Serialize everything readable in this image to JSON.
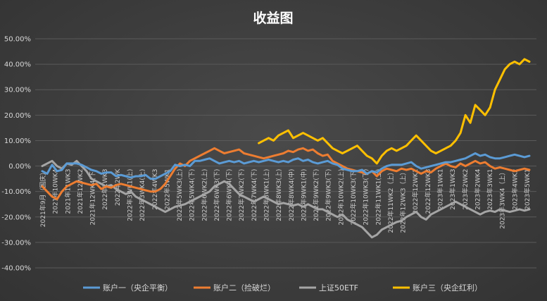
{
  "chart_data": {
    "type": "line",
    "title": "收益图",
    "xlabel": "",
    "ylabel": "",
    "ylim": [
      -0.4,
      0.5
    ],
    "yticks": [
      "50.00%",
      "40.00%",
      "30.00%",
      "20.00%",
      "10.00%",
      "0.00%",
      "-10.00%",
      "-20.00%",
      "-30.00%",
      "-40.00%"
    ],
    "grid": true,
    "legend": "bottom",
    "x_tick_labels": [
      "2021年9月（国庆）",
      "2021年10WK4",
      "2021年11WK3",
      "2021年12WK2",
      "2021年12WK4(下)",
      "2022年1WK3",
      "2022年2WK",
      "2022年3WK1(上)",
      "2022年3WK4(上)",
      "2022年4WK3",
      "2022年5WK1",
      "2022年5WK3(上)",
      "2022年5WK4(下)",
      "2022年6WK2(上)",
      "2022年6WK3(下)",
      "2022年6WK4(下)",
      "2022年7WK2(下)",
      "2022年7WK4(下)",
      "2022年8WK1(上)",
      "2022年8WK3(上)",
      "2022年8WK4(中)",
      "2022年9WK1(中)",
      "2022年9WK2(下)",
      "2022年9WK3(下)",
      "2022年10WK2(上)",
      "2022年10WK3(下)",
      "2022年10WK3(下)",
      "2022年11WK1(上)",
      "2022年11WK2（上）",
      "2022年12WK3（上）",
      "2022年12WK1",
      "2022年12WK3",
      "2023年1WK1",
      "2023年1WK3",
      "2023年2WK2",
      "2023年2WK4",
      "2023年3WK1",
      "2023年3WK4（上）",
      "2023年4WK2",
      "2023年5WK1"
    ],
    "series": [
      {
        "name": "账户一（央企平衡）",
        "color": "#5b9bd5",
        "values": [
          -0.02,
          -0.03,
          0.005,
          -0.02,
          -0.015,
          0.01,
          0.01,
          0.01,
          0.005,
          -0.005,
          -0.015,
          -0.02,
          -0.03,
          -0.025,
          -0.025,
          -0.04,
          -0.035,
          -0.04,
          -0.045,
          -0.04,
          -0.04,
          -0.035,
          -0.05,
          -0.05,
          -0.04,
          -0.03,
          -0.02,
          0.005,
          0.0,
          0.005,
          0.0,
          0.02,
          0.02,
          0.025,
          0.03,
          0.02,
          0.01,
          0.015,
          0.02,
          0.015,
          0.02,
          0.01,
          0.015,
          0.02,
          0.015,
          0.02,
          0.025,
          0.02,
          0.015,
          0.02,
          0.015,
          0.025,
          0.03,
          0.02,
          0.025,
          0.015,
          0.01,
          0.015,
          0.02,
          0.01,
          0.005,
          -0.01,
          -0.015,
          -0.02,
          -0.02,
          -0.015,
          -0.03,
          -0.02,
          -0.025,
          -0.01,
          0.0,
          0.005,
          0.005,
          0.005,
          0.01,
          0.015,
          0.0,
          -0.01,
          -0.005,
          0.0,
          0.005,
          0.01,
          0.015,
          0.015,
          0.02,
          0.025,
          0.03,
          0.04,
          0.05,
          0.04,
          0.045,
          0.035,
          0.03,
          0.03,
          0.035,
          0.04,
          0.045,
          0.04,
          0.035,
          0.04
        ]
      },
      {
        "name": "账户二（捡破烂）",
        "color": "#ed7d31",
        "values": [
          -0.08,
          -0.1,
          -0.12,
          -0.13,
          -0.1,
          -0.08,
          -0.07,
          -0.06,
          -0.065,
          -0.07,
          -0.075,
          -0.07,
          -0.09,
          -0.08,
          -0.085,
          -0.075,
          -0.07,
          -0.075,
          -0.08,
          -0.085,
          -0.09,
          -0.095,
          -0.1,
          -0.1,
          -0.09,
          -0.07,
          -0.04,
          -0.01,
          0.01,
          0.0,
          0.02,
          0.03,
          0.04,
          0.05,
          0.06,
          0.07,
          0.06,
          0.05,
          0.055,
          0.06,
          0.065,
          0.05,
          0.045,
          0.04,
          0.035,
          0.03,
          0.035,
          0.04,
          0.045,
          0.05,
          0.06,
          0.055,
          0.065,
          0.07,
          0.06,
          0.065,
          0.05,
          0.04,
          0.045,
          0.02,
          0.01,
          0.0,
          -0.01,
          -0.015,
          -0.02,
          -0.025,
          -0.03,
          -0.02,
          -0.04,
          -0.02,
          -0.01,
          -0.015,
          -0.02,
          -0.01,
          -0.015,
          -0.01,
          -0.02,
          -0.03,
          -0.02,
          -0.025,
          -0.01,
          0.0,
          0.01,
          0.0,
          -0.005,
          0.01,
          0.0,
          0.01,
          0.02,
          0.01,
          0.015,
          0.0,
          -0.01,
          -0.005,
          -0.01,
          -0.015,
          -0.02,
          -0.015,
          -0.01,
          -0.015
        ]
      },
      {
        "name": "上证50ETF",
        "color": "#a5a5a5",
        "values": [
          0.0,
          0.01,
          0.02,
          0.0,
          -0.01,
          0.01,
          0.005,
          0.02,
          0.0,
          -0.02,
          -0.05,
          -0.06,
          -0.07,
          -0.08,
          -0.075,
          -0.09,
          -0.1,
          -0.11,
          -0.1,
          -0.12,
          -0.13,
          -0.14,
          -0.15,
          -0.16,
          -0.17,
          -0.18,
          -0.17,
          -0.16,
          -0.155,
          -0.15,
          -0.14,
          -0.13,
          -0.12,
          -0.11,
          -0.1,
          -0.08,
          -0.07,
          -0.06,
          -0.07,
          -0.09,
          -0.11,
          -0.12,
          -0.13,
          -0.14,
          -0.13,
          -0.12,
          -0.13,
          -0.14,
          -0.15,
          -0.145,
          -0.15,
          -0.155,
          -0.15,
          -0.16,
          -0.15,
          -0.16,
          -0.17,
          -0.17,
          -0.18,
          -0.19,
          -0.2,
          -0.19,
          -0.21,
          -0.22,
          -0.23,
          -0.24,
          -0.26,
          -0.28,
          -0.27,
          -0.25,
          -0.24,
          -0.23,
          -0.22,
          -0.215,
          -0.2,
          -0.19,
          -0.18,
          -0.2,
          -0.21,
          -0.19,
          -0.18,
          -0.17,
          -0.16,
          -0.15,
          -0.14,
          -0.15,
          -0.16,
          -0.17,
          -0.18,
          -0.19,
          -0.18,
          -0.175,
          -0.18,
          -0.17,
          -0.175,
          -0.18,
          -0.175,
          -0.17,
          -0.175,
          -0.17
        ]
      },
      {
        "name": "账户三（央企红利）",
        "color": "#ffc000",
        "start_index": 44,
        "values": [
          0.09,
          0.1,
          0.11,
          0.1,
          0.12,
          0.13,
          0.14,
          0.11,
          0.12,
          0.13,
          0.12,
          0.11,
          0.1,
          0.11,
          0.09,
          0.07,
          0.06,
          0.05,
          0.06,
          0.07,
          0.08,
          0.06,
          0.04,
          0.03,
          0.01,
          0.04,
          0.06,
          0.07,
          0.06,
          0.07,
          0.08,
          0.1,
          0.12,
          0.1,
          0.08,
          0.06,
          0.05,
          0.06,
          0.07,
          0.08,
          0.1,
          0.13,
          0.2,
          0.17,
          0.24,
          0.22,
          0.2,
          0.23,
          0.3,
          0.34,
          0.38,
          0.4,
          0.41,
          0.4,
          0.42,
          0.41
        ]
      }
    ]
  }
}
